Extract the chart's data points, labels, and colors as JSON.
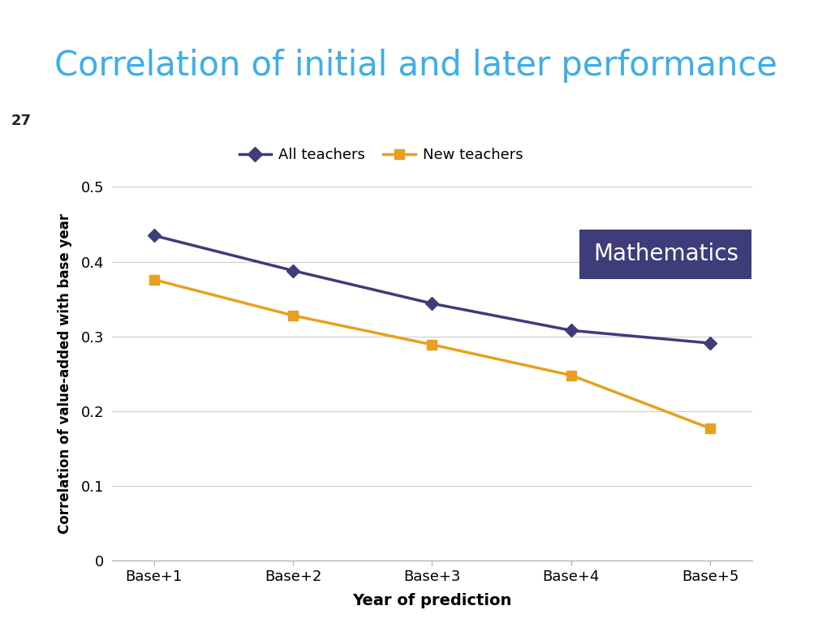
{
  "title": "Correlation of initial and later performance",
  "title_color": "#3daee9",
  "slide_number": "27",
  "slide_number_bg": "#e8a030",
  "header_bar_color": "#5a5a9a",
  "xlabel": "Year of prediction",
  "ylabel": "Correlation of value-added with base year",
  "x_labels": [
    "Base+1",
    "Base+2",
    "Base+3",
    "Base+4",
    "Base+5"
  ],
  "all_teachers": [
    0.435,
    0.388,
    0.344,
    0.308,
    0.291
  ],
  "new_teachers": [
    0.376,
    0.328,
    0.289,
    0.248,
    0.177
  ],
  "all_teachers_color": "#3d3d7a",
  "new_teachers_color": "#e8a020",
  "ylim": [
    0,
    0.5
  ],
  "yticks": [
    0,
    0.1,
    0.2,
    0.3,
    0.4,
    0.5
  ],
  "math_box_color": "#3d3d7a",
  "math_text": "Mathematics",
  "legend_all": "All teachers",
  "legend_new": "New teachers",
  "bg_color": "#ffffff",
  "grid_color": "#cccccc"
}
